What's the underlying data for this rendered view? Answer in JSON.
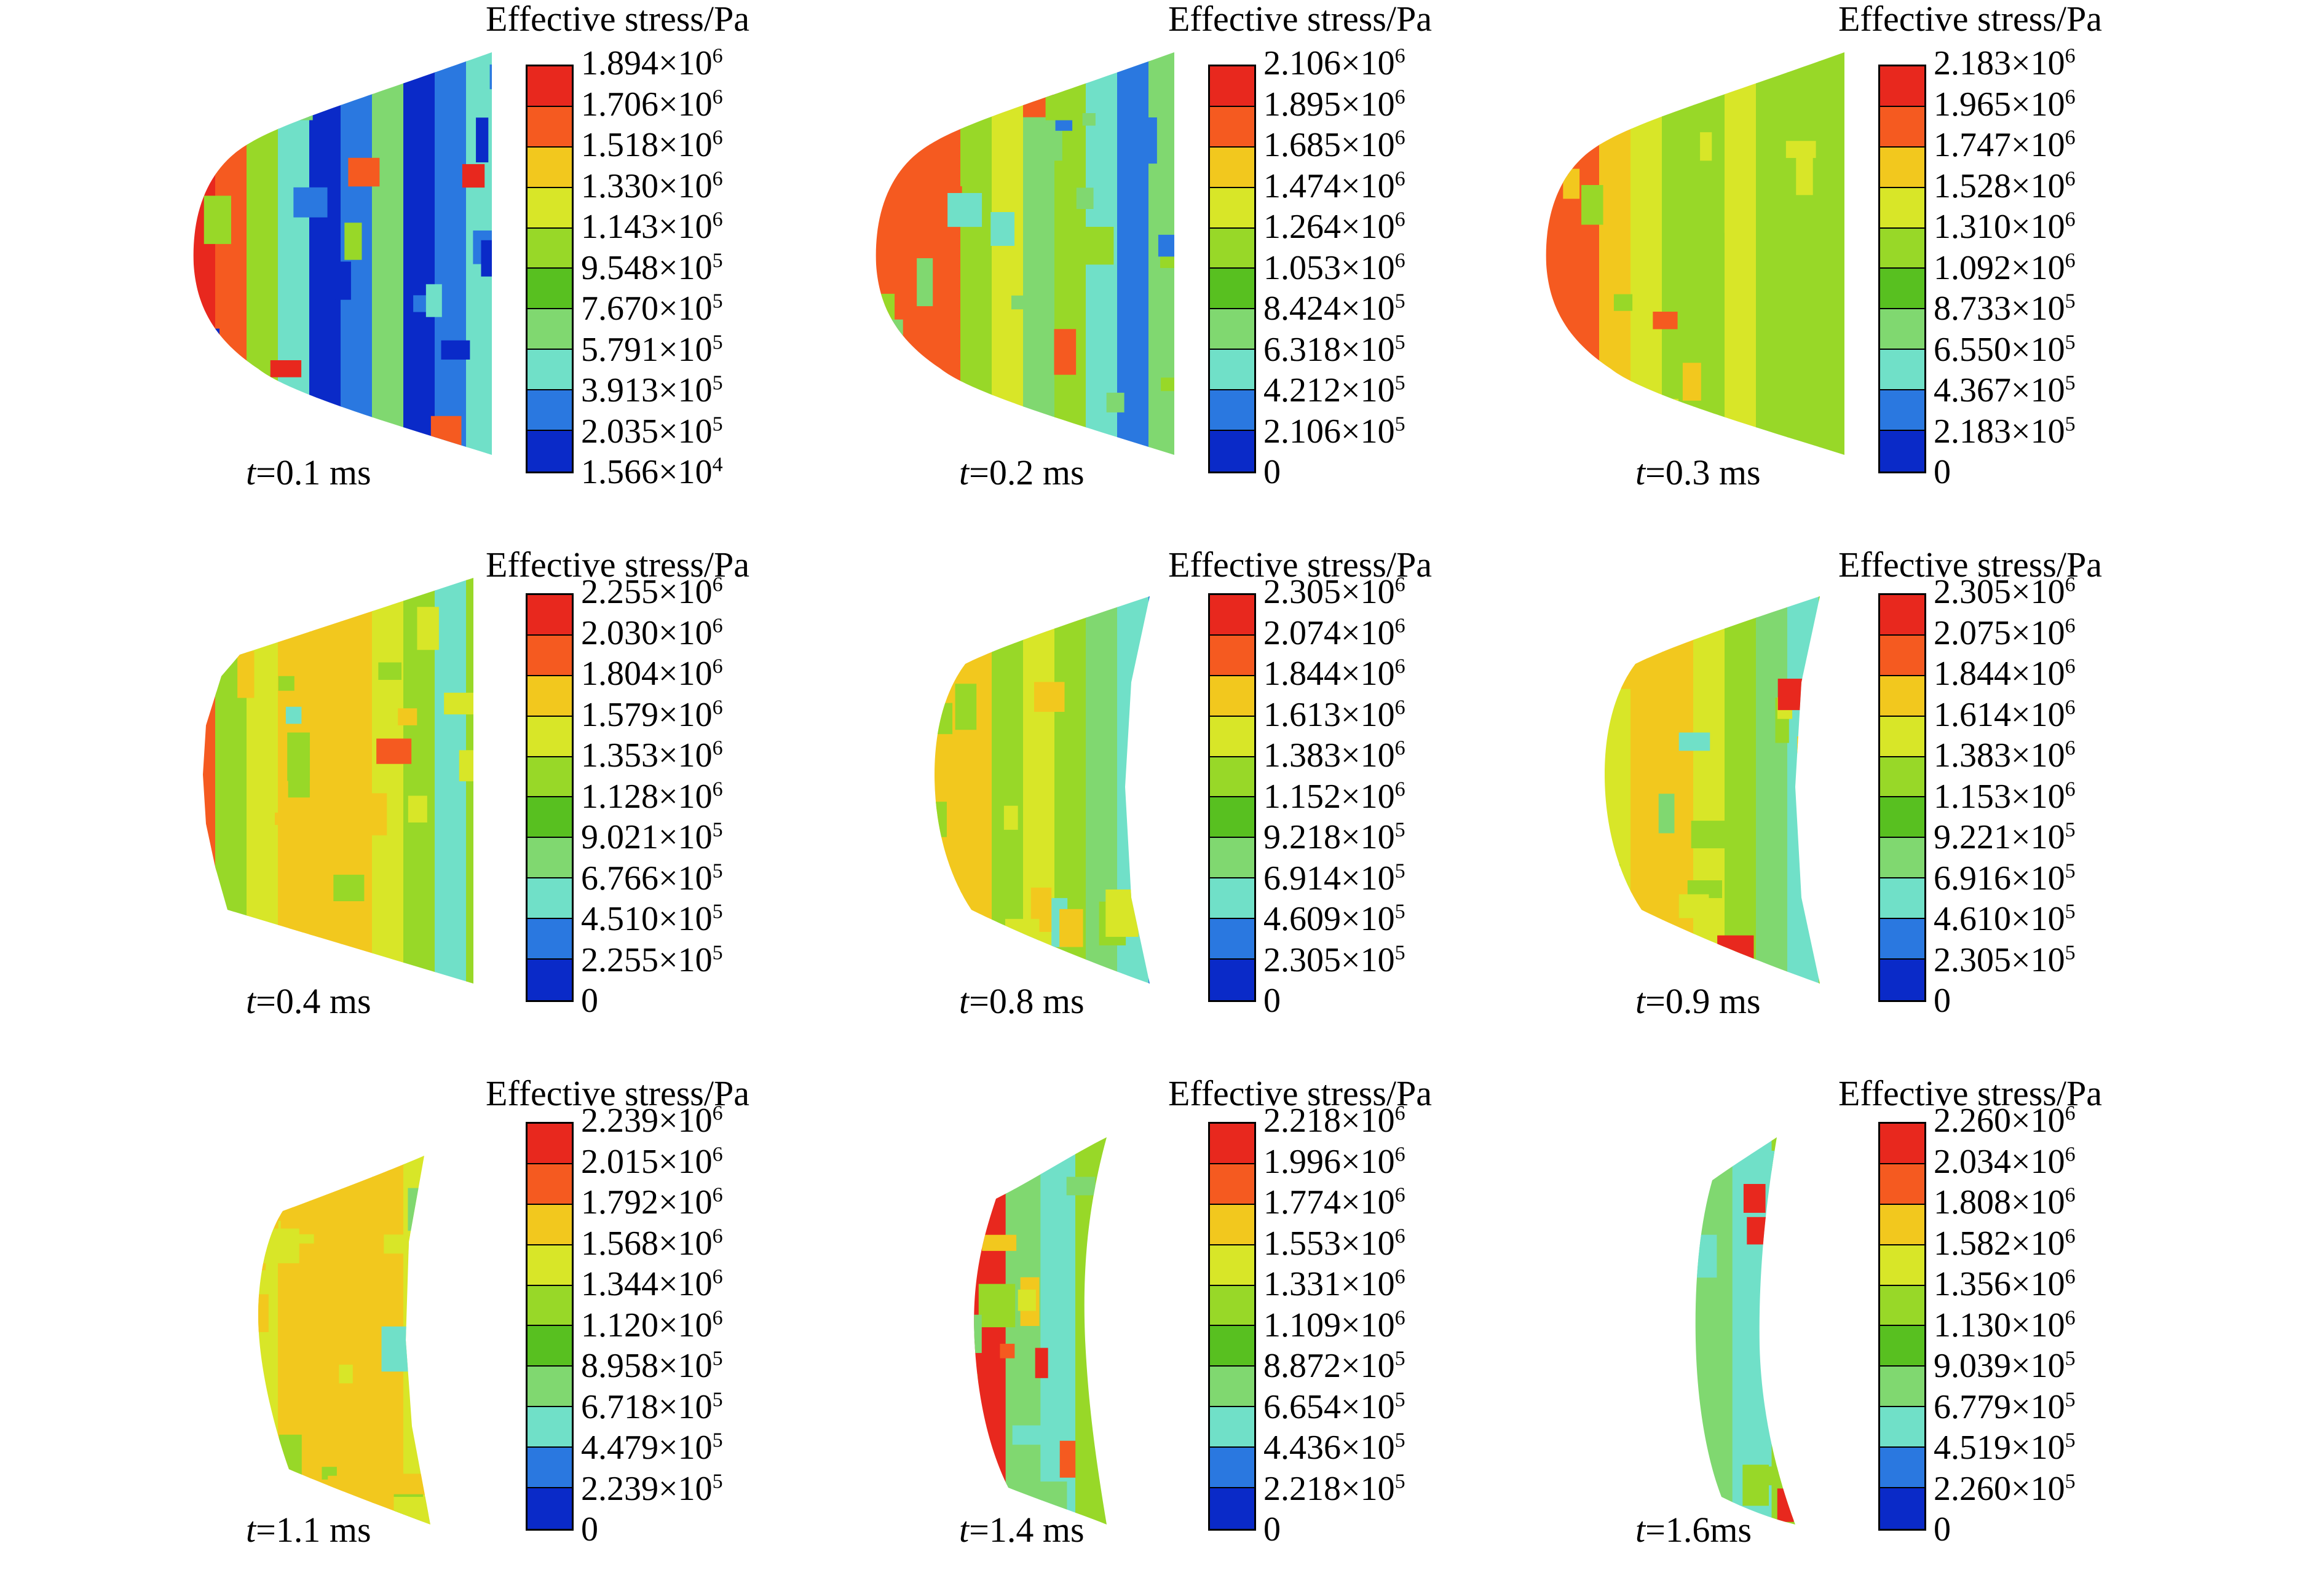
{
  "legend_title": "Effective stress/Pa",
  "colorbar_colors": [
    "#e8281e",
    "#f55a20",
    "#f2c81e",
    "#d8e628",
    "#98d828",
    "#58c020",
    "#80d870",
    "#70e0c8",
    "#2a78e0",
    "#0a2ac8"
  ],
  "panels": [
    {
      "time_var": "t",
      "time_text": "=0.1 ms",
      "shape": "dome-wide",
      "ticks": [
        {
          "m": "1.894",
          "e": "6"
        },
        {
          "m": "1.706",
          "e": "6"
        },
        {
          "m": "1.518",
          "e": "6"
        },
        {
          "m": "1.330",
          "e": "6"
        },
        {
          "m": "1.143",
          "e": "6"
        },
        {
          "m": "9.548",
          "e": "5"
        },
        {
          "m": "7.670",
          "e": "5"
        },
        {
          "m": "5.791",
          "e": "5"
        },
        {
          "m": "3.913",
          "e": "5"
        },
        {
          "m": "2.035",
          "e": "5"
        },
        {
          "m": "1.566",
          "e": "4"
        }
      ],
      "bands": [
        "#e8281e",
        "#f55a20",
        "#98d828",
        "#70e0c8",
        "#0a2ac8",
        "#2a78e0",
        "#80d870",
        "#0a2ac8",
        "#2a78e0",
        "#70e0c8"
      ]
    },
    {
      "time_var": "t",
      "time_text": "=0.2 ms",
      "shape": "dome-wide",
      "ticks": [
        {
          "m": "2.106",
          "e": "6"
        },
        {
          "m": "1.895",
          "e": "6"
        },
        {
          "m": "1.685",
          "e": "6"
        },
        {
          "m": "1.474",
          "e": "6"
        },
        {
          "m": "1.264",
          "e": "6"
        },
        {
          "m": "1.053",
          "e": "6"
        },
        {
          "m": "8.424",
          "e": "5"
        },
        {
          "m": "6.318",
          "e": "5"
        },
        {
          "m": "4.212",
          "e": "5"
        },
        {
          "m": "2.106",
          "e": "5"
        },
        {
          "m": "0",
          "e": ""
        }
      ],
      "bands": [
        "#f55a20",
        "#f55a20",
        "#f55a20",
        "#98d828",
        "#d8e628",
        "#80d870",
        "#98d828",
        "#70e0c8",
        "#2a78e0",
        "#80d870"
      ]
    },
    {
      "time_var": "t",
      "time_text": "=0.3 ms",
      "shape": "dome-wide",
      "ticks": [
        {
          "m": "2.183",
          "e": "6"
        },
        {
          "m": "1.965",
          "e": "6"
        },
        {
          "m": "1.747",
          "e": "6"
        },
        {
          "m": "1.528",
          "e": "6"
        },
        {
          "m": "1.310",
          "e": "6"
        },
        {
          "m": "1.092",
          "e": "6"
        },
        {
          "m": "8.733",
          "e": "5"
        },
        {
          "m": "6.550",
          "e": "5"
        },
        {
          "m": "4.367",
          "e": "5"
        },
        {
          "m": "2.183",
          "e": "5"
        },
        {
          "m": "0",
          "e": ""
        }
      ],
      "bands": [
        "#f55a20",
        "#f55a20",
        "#f2c81e",
        "#d8e628",
        "#98d828",
        "#98d828",
        "#d8e628",
        "#98d828",
        "#98d828",
        "#98d828"
      ]
    },
    {
      "time_var": "t",
      "time_text": "=0.4 ms",
      "shape": "trapezoid",
      "ticks": [
        {
          "m": "2.255",
          "e": "6"
        },
        {
          "m": "2.030",
          "e": "6"
        },
        {
          "m": "1.804",
          "e": "6"
        },
        {
          "m": "1.579",
          "e": "6"
        },
        {
          "m": "1.353",
          "e": "6"
        },
        {
          "m": "1.128",
          "e": "6"
        },
        {
          "m": "9.021",
          "e": "5"
        },
        {
          "m": "6.766",
          "e": "5"
        },
        {
          "m": "4.510",
          "e": "5"
        },
        {
          "m": "2.255",
          "e": "5"
        },
        {
          "m": "0",
          "e": ""
        }
      ],
      "bands": [
        "#f55a20",
        "#98d828",
        "#d8e628",
        "#f2c81e",
        "#f2c81e",
        "#f2c81e",
        "#d8e628",
        "#98d828",
        "#70e0c8",
        "#98d828"
      ]
    },
    {
      "time_var": "t",
      "time_text": "=0.8 ms",
      "shape": "barrel",
      "ticks": [
        {
          "m": "2.305",
          "e": "6"
        },
        {
          "m": "2.074",
          "e": "6"
        },
        {
          "m": "1.844",
          "e": "6"
        },
        {
          "m": "1.613",
          "e": "6"
        },
        {
          "m": "1.383",
          "e": "6"
        },
        {
          "m": "1.152",
          "e": "6"
        },
        {
          "m": "9.218",
          "e": "5"
        },
        {
          "m": "6.914",
          "e": "5"
        },
        {
          "m": "4.609",
          "e": "5"
        },
        {
          "m": "2.305",
          "e": "5"
        },
        {
          "m": "0",
          "e": ""
        }
      ],
      "bands": [
        "#98d828",
        "#d8e628",
        "#f2c81e",
        "#f2c81e",
        "#98d828",
        "#d8e628",
        "#98d828",
        "#80d870",
        "#70e0c8",
        "#2a78e0"
      ]
    },
    {
      "time_var": "t",
      "time_text": "=0.9 ms",
      "shape": "barrel",
      "ticks": [
        {
          "m": "2.305",
          "e": "6"
        },
        {
          "m": "2.075",
          "e": "6"
        },
        {
          "m": "1.844",
          "e": "6"
        },
        {
          "m": "1.614",
          "e": "6"
        },
        {
          "m": "1.383",
          "e": "6"
        },
        {
          "m": "1.153",
          "e": "6"
        },
        {
          "m": "9.221",
          "e": "5"
        },
        {
          "m": "6.916",
          "e": "5"
        },
        {
          "m": "4.610",
          "e": "5"
        },
        {
          "m": "2.305",
          "e": "5"
        },
        {
          "m": "0",
          "e": ""
        }
      ],
      "bands": [
        "#98d828",
        "#e8281e",
        "#d8e628",
        "#f2c81e",
        "#f2c81e",
        "#d8e628",
        "#98d828",
        "#80d870",
        "#70e0c8",
        "#98d828"
      ]
    },
    {
      "time_var": "t",
      "time_text": "=1.1 ms",
      "shape": "narrow",
      "ticks": [
        {
          "m": "2.239",
          "e": "6"
        },
        {
          "m": "2.015",
          "e": "6"
        },
        {
          "m": "1.792",
          "e": "6"
        },
        {
          "m": "1.568",
          "e": "6"
        },
        {
          "m": "1.344",
          "e": "6"
        },
        {
          "m": "1.120",
          "e": "6"
        },
        {
          "m": "8.958",
          "e": "5"
        },
        {
          "m": "6.718",
          "e": "5"
        },
        {
          "m": "4.479",
          "e": "5"
        },
        {
          "m": "2.239",
          "e": "5"
        },
        {
          "m": "0",
          "e": ""
        }
      ],
      "bands": [
        "#98d828",
        "#f55a20",
        "#d8e628",
        "#f2c81e",
        "#f2c81e",
        "#f2c81e",
        "#f2c81e",
        "#d8e628",
        "#80d870",
        "#70e0c8"
      ]
    },
    {
      "time_var": "t",
      "time_text": "=1.4 ms",
      "shape": "crescent",
      "ticks": [
        {
          "m": "2.218",
          "e": "6"
        },
        {
          "m": "1.996",
          "e": "6"
        },
        {
          "m": "1.774",
          "e": "6"
        },
        {
          "m": "1.553",
          "e": "6"
        },
        {
          "m": "1.331",
          "e": "6"
        },
        {
          "m": "1.109",
          "e": "6"
        },
        {
          "m": "8.872",
          "e": "5"
        },
        {
          "m": "6.654",
          "e": "5"
        },
        {
          "m": "4.436",
          "e": "5"
        },
        {
          "m": "2.218",
          "e": "5"
        },
        {
          "m": "0",
          "e": ""
        }
      ],
      "bands": [
        "#f55a20",
        "#d8e628",
        "#98d828",
        "#e8281e",
        "#80d870",
        "#70e0c8",
        "#98d828",
        "#f2c81e",
        "#d8e628"
      ]
    },
    {
      "time_var": "t",
      "time_text": "=1.6ms",
      "shape": "crescent-thin",
      "ticks": [
        {
          "m": "2.260",
          "e": "6"
        },
        {
          "m": "2.034",
          "e": "6"
        },
        {
          "m": "1.808",
          "e": "6"
        },
        {
          "m": "1.582",
          "e": "6"
        },
        {
          "m": "1.356",
          "e": "6"
        },
        {
          "m": "1.130",
          "e": "6"
        },
        {
          "m": "9.039",
          "e": "5"
        },
        {
          "m": "6.779",
          "e": "5"
        },
        {
          "m": "4.519",
          "e": "5"
        },
        {
          "m": "2.260",
          "e": "5"
        },
        {
          "m": "0",
          "e": ""
        }
      ],
      "bands": [
        "#98d828",
        "#e8281e",
        "#d8e628",
        "#98d828",
        "#80d870",
        "#70e0c8",
        "#98d828",
        "#e8281e"
      ]
    }
  ]
}
